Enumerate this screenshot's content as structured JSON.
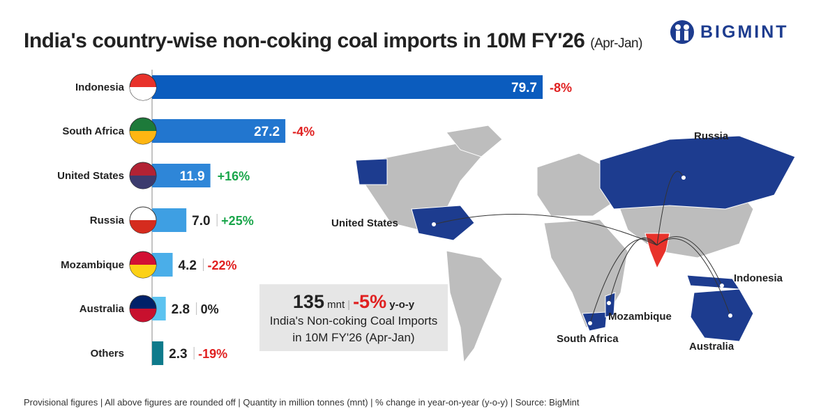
{
  "title": "India's country-wise non-coking coal imports in 10M FY'26",
  "title_period": "(Apr-Jan)",
  "logo": "BIGMINT",
  "colors": {
    "bars": [
      "#0b5cbe",
      "#2276cf",
      "#2e86d8",
      "#3e9fe3",
      "#4aaee9",
      "#5cc3f0",
      "#0e7a8b"
    ],
    "positive": "#1aa64b",
    "negative": "#e02020",
    "zero": "#222222",
    "highlight_map": "#1d3c8f",
    "india": "#e8322b",
    "land": "#bdbdbd"
  },
  "chart_data": {
    "type": "bar",
    "orientation": "horizontal",
    "categories": [
      "Indonesia",
      "South Africa",
      "United States",
      "Russia",
      "Mozambique",
      "Australia",
      "Others"
    ],
    "values": [
      79.7,
      27.2,
      11.9,
      7.0,
      4.2,
      2.8,
      2.3
    ],
    "value_labels": [
      "79.7",
      "27.2",
      "11.9",
      "7.0",
      "4.2",
      "2.8",
      "2.3"
    ],
    "yoy_change": [
      "-8%",
      "-4%",
      "+16%",
      "+25%",
      "-22%",
      "0%",
      "-19%"
    ],
    "unit": "mnt",
    "grid": false
  },
  "summary": {
    "total": "135",
    "unit": "mnt",
    "change": "-5%",
    "change_label": "y-o-y",
    "line1": "India's Non-coking Coal Imports",
    "line2": "in 10M FY'26 (Apr-Jan)"
  },
  "map_labels": [
    "Russia",
    "United States",
    "Indonesia",
    "Mozambique",
    "South Africa",
    "Australia"
  ],
  "footer": "Provisional figures | All above figures are rounded off | Quantity in million tonnes (mnt) | % change in year-on-year (y-o-y) | Source: BigMint"
}
